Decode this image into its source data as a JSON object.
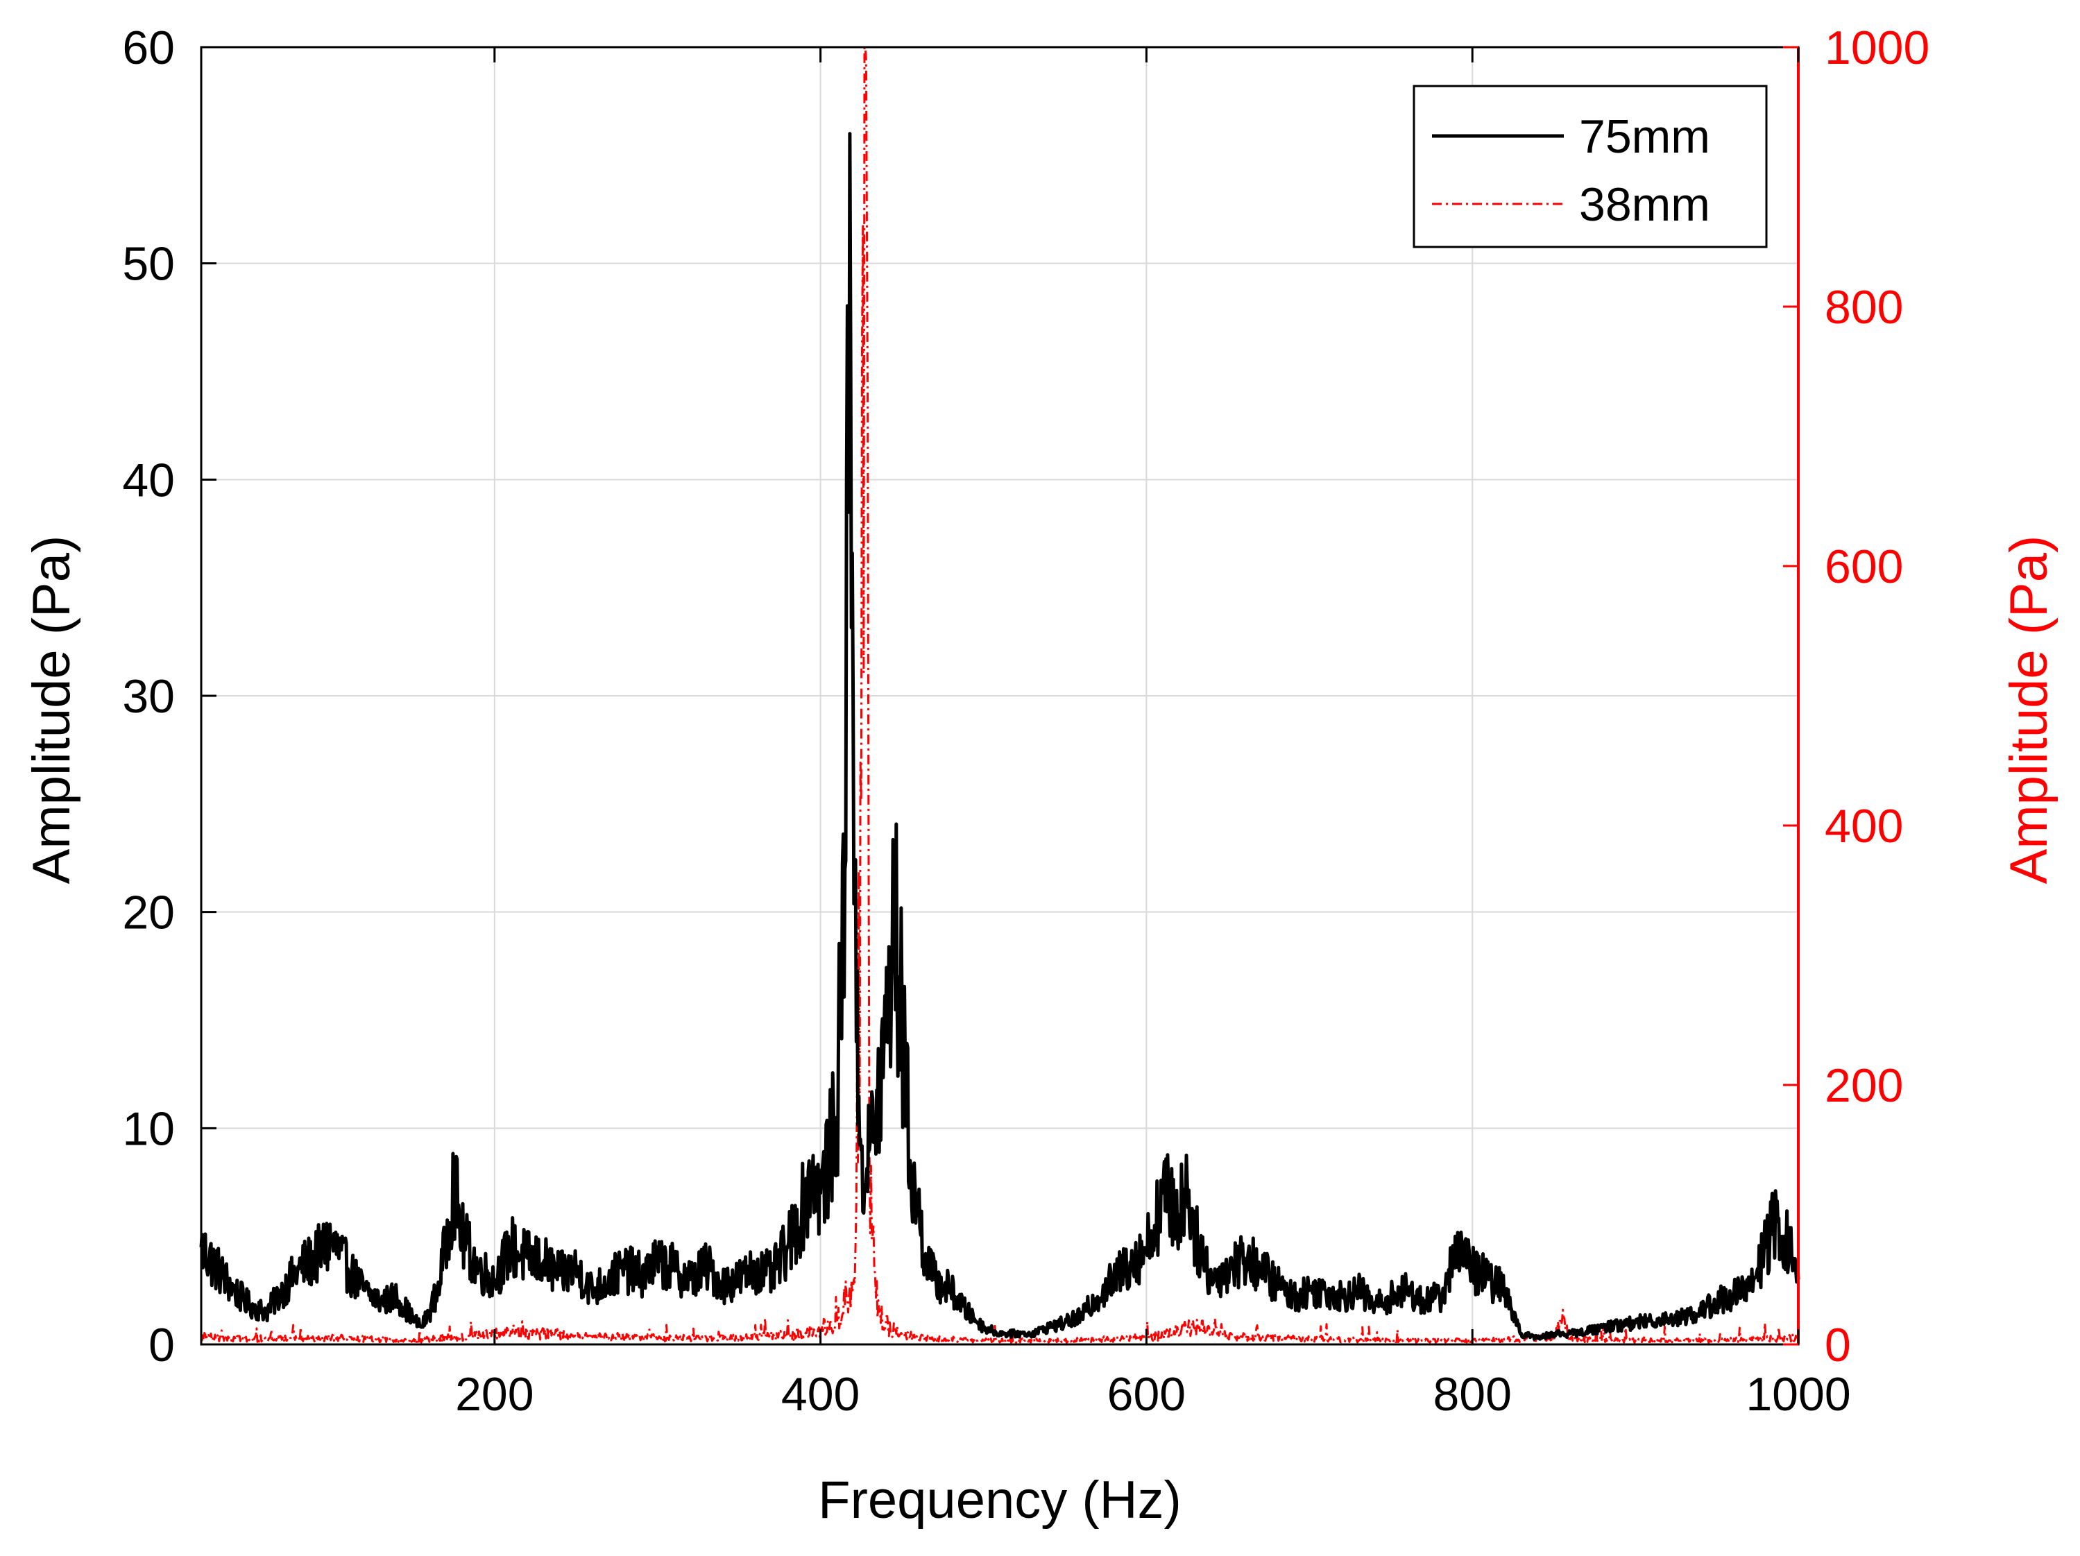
{
  "chart_data": {
    "type": "line",
    "title": "",
    "xlabel": "Frequency (Hz)",
    "ylabel_left": "Amplitude (Pa)",
    "ylabel_right": "Amplitude (Pa)",
    "xlim": [
      20,
      1000
    ],
    "ylim_left": [
      0,
      60
    ],
    "ylim_right": [
      0,
      1000
    ],
    "x_ticks": [
      200,
      400,
      600,
      800,
      1000
    ],
    "y_left_ticks": [
      0,
      10,
      20,
      30,
      40,
      50,
      60
    ],
    "y_right_ticks": [
      0,
      200,
      400,
      600,
      800,
      1000
    ],
    "grid": true,
    "legend_position": "top-right",
    "colors": {
      "series_75mm": "#000000",
      "series_38mm": "#ff0000",
      "right_axis": "#ff0000",
      "grid": "#d9d9d9"
    },
    "series": [
      {
        "name": "75mm",
        "axis": "left",
        "style": "solid",
        "x": [
          20,
          30,
          40,
          50,
          60,
          70,
          80,
          90,
          100,
          110,
          120,
          130,
          140,
          150,
          155,
          160,
          165,
          170,
          175,
          180,
          190,
          200,
          210,
          220,
          230,
          240,
          250,
          260,
          270,
          280,
          290,
          300,
          310,
          320,
          330,
          340,
          350,
          360,
          370,
          380,
          390,
          395,
          400,
          405,
          410,
          415,
          418,
          420,
          422,
          425,
          428,
          430,
          435,
          440,
          445,
          448,
          452,
          455,
          460,
          465,
          470,
          480,
          490,
          500,
          510,
          520,
          530,
          540,
          550,
          560,
          570,
          580,
          590,
          600,
          605,
          610,
          615,
          620,
          625,
          630,
          640,
          650,
          660,
          670,
          680,
          690,
          700,
          710,
          720,
          730,
          740,
          750,
          760,
          770,
          780,
          785,
          790,
          795,
          800,
          810,
          820,
          825,
          830,
          840,
          850,
          860,
          870,
          880,
          890,
          900,
          910,
          920,
          930,
          940,
          950,
          960,
          970,
          975,
          980,
          985,
          990,
          995,
          1000
        ],
        "y": [
          4.5,
          3.5,
          2.5,
          1.8,
          1.5,
          2.5,
          3.5,
          4.0,
          4.8,
          3.5,
          2.5,
          2.0,
          2.2,
          1.2,
          0.8,
          1.5,
          2.5,
          4.5,
          7.5,
          5.0,
          3.5,
          3.0,
          4.5,
          4.0,
          3.8,
          3.2,
          3.5,
          2.5,
          3.0,
          3.5,
          3.2,
          3.8,
          3.5,
          3.0,
          3.6,
          2.8,
          3.0,
          3.5,
          3.2,
          4.5,
          6.5,
          8.0,
          7.0,
          8.5,
          10.5,
          22.0,
          56.0,
          30.0,
          14.0,
          9.0,
          7.5,
          9.0,
          11.0,
          14.0,
          20.0,
          17.0,
          12.5,
          8.5,
          6.0,
          4.0,
          3.0,
          2.5,
          1.5,
          0.8,
          0.5,
          0.5,
          0.5,
          0.8,
          1.0,
          1.3,
          2.2,
          3.0,
          3.8,
          4.5,
          5.5,
          7.0,
          6.5,
          6.0,
          7.5,
          5.0,
          3.0,
          3.5,
          4.0,
          3.5,
          2.8,
          2.2,
          2.5,
          2.5,
          2.2,
          2.5,
          1.8,
          2.2,
          2.5,
          2.0,
          2.2,
          2.8,
          5.0,
          4.0,
          3.5,
          3.0,
          2.5,
          1.5,
          0.5,
          0.3,
          0.5,
          0.5,
          0.6,
          0.8,
          0.9,
          1.0,
          1.1,
          1.2,
          1.3,
          1.5,
          2.0,
          2.3,
          2.5,
          3.5,
          4.5,
          5.5,
          5.0,
          4.5,
          3.0
        ]
      },
      {
        "name": "38mm",
        "axis": "right",
        "style": "dash-dot",
        "x": [
          20,
          50,
          100,
          150,
          200,
          210,
          250,
          300,
          350,
          390,
          400,
          410,
          415,
          420,
          422,
          425,
          428,
          430,
          433,
          436,
          440,
          450,
          460,
          480,
          500,
          550,
          600,
          615,
          630,
          640,
          650,
          700,
          750,
          800,
          850,
          855,
          860,
          900,
          950,
          1000
        ],
        "y": [
          6,
          4,
          5,
          3,
          8,
          10,
          6,
          5,
          5,
          8,
          12,
          20,
          30,
          45,
          110,
          420,
          990,
          150,
          60,
          25,
          15,
          8,
          5,
          4,
          3,
          3,
          5,
          8,
          14,
          10,
          6,
          4,
          3,
          3,
          5,
          18,
          4,
          3,
          3,
          5
        ]
      }
    ]
  }
}
